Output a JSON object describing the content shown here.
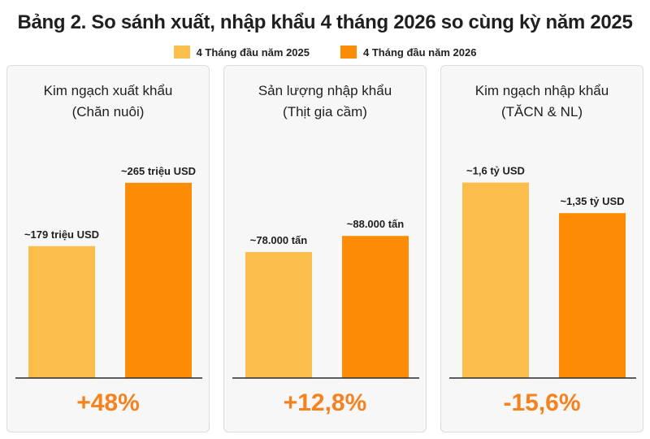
{
  "title": "Bảng 2. So sánh xuất, nhập khẩu 4 tháng 2026 so cùng kỳ năm 2025",
  "colors": {
    "series_2025": "#fbbd4c",
    "series_2026": "#fc8c05",
    "change": "#f5821f"
  },
  "legend": [
    "4 Tháng đầu năm 2025",
    "4 Tháng đầu năm 2026"
  ],
  "chart_data": [
    {
      "type": "bar",
      "title_line1": "Kim ngạch xuất khẩu",
      "title_line2": "(Chăn nuôi)",
      "series": [
        {
          "name": "4 Tháng đầu năm 2025",
          "values": [
            179
          ],
          "label": "~179 triệu USD"
        },
        {
          "name": "4 Tháng đầu năm 2026",
          "values": [
            265
          ],
          "label": "~265 triệu USD"
        }
      ],
      "unit": "triệu USD",
      "ylim": [
        0,
        320
      ],
      "change": "+48%"
    },
    {
      "type": "bar",
      "title_line1": "Sản lượng nhập khẩu",
      "title_line2": "(Thịt gia cầm)",
      "series": [
        {
          "name": "4 Tháng đầu năm 2025",
          "values": [
            78000
          ],
          "label": "~78.000 tấn"
        },
        {
          "name": "4 Tháng đầu năm 2026",
          "values": [
            88000
          ],
          "label": "~88.000 tấn"
        }
      ],
      "unit": "tấn",
      "ylim": [
        0,
        146000
      ],
      "change": "+12,8%"
    },
    {
      "type": "bar",
      "title_line1": "Kim ngạch nhập khẩu",
      "title_line2": "(TĂCN & NL)",
      "series": [
        {
          "name": "4 Tháng đầu năm 2025",
          "values": [
            1.6
          ],
          "label": "~1,6 tỷ USD"
        },
        {
          "name": "4 Tháng đầu năm 2026",
          "values": [
            1.35
          ],
          "label": "~1,35 tỷ USD"
        }
      ],
      "unit": "tỷ USD",
      "ylim": [
        0,
        1.93
      ],
      "change": "-15,6%"
    }
  ]
}
